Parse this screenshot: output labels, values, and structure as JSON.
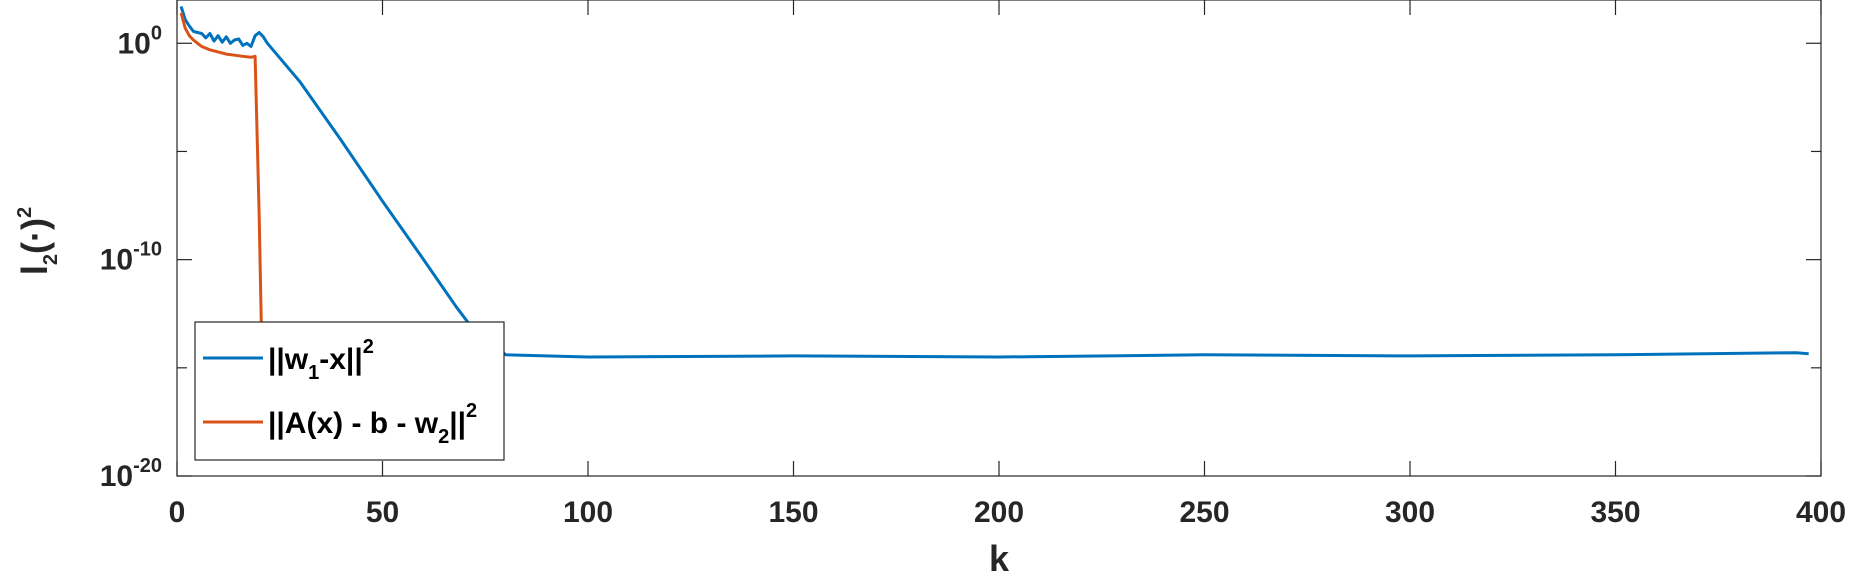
{
  "chart_data": {
    "type": "line",
    "xlabel": "k",
    "ylabel_parts": {
      "base": "l",
      "sub": "2",
      "mid": "(·)",
      "sup": "2"
    },
    "xlim": [
      0,
      400
    ],
    "ylim_log10": [
      -20,
      2
    ],
    "yscale": "log",
    "xticks": [
      "0",
      "50",
      "100",
      "150",
      "200",
      "250",
      "300",
      "350",
      "400"
    ],
    "xtick_values": [
      0,
      50,
      100,
      150,
      200,
      250,
      300,
      350,
      400
    ],
    "yticks": [
      {
        "exp": -20,
        "base": "10",
        "sup": "-20"
      },
      {
        "exp": -10,
        "base": "10",
        "sup": "-10"
      },
      {
        "exp": 0,
        "base": "10",
        "sup": "0"
      }
    ],
    "minor_ytick_exps": [
      -15,
      -5
    ],
    "grid": false,
    "legend_position": "lower-left",
    "series": [
      {
        "key": "w1",
        "legend": {
          "pre": "||w",
          "sub": "1",
          "post": "-x||",
          "sup": "2"
        },
        "color": "#0072BD",
        "points_log10": [
          [
            1,
            1.7
          ],
          [
            2,
            1.1
          ],
          [
            3,
            0.8
          ],
          [
            4,
            0.55
          ],
          [
            5,
            0.5
          ],
          [
            6,
            0.45
          ],
          [
            7,
            0.25
          ],
          [
            8,
            0.45
          ],
          [
            9,
            0.1
          ],
          [
            10,
            0.35
          ],
          [
            11,
            0.05
          ],
          [
            12,
            0.3
          ],
          [
            13,
            0.0
          ],
          [
            14,
            0.15
          ],
          [
            15,
            0.2
          ],
          [
            16,
            -0.1
          ],
          [
            17,
            0.0
          ],
          [
            18,
            -0.15
          ],
          [
            19,
            0.35
          ],
          [
            20,
            0.5
          ],
          [
            21,
            0.3
          ],
          [
            22,
            0.0
          ],
          [
            30,
            -1.8
          ],
          [
            40,
            -4.5
          ],
          [
            50,
            -7.3
          ],
          [
            60,
            -10.0
          ],
          [
            64,
            -11.1
          ],
          [
            68,
            -12.2
          ],
          [
            72,
            -13.2
          ],
          [
            80,
            -14.4
          ],
          [
            100,
            -14.5
          ],
          [
            150,
            -14.45
          ],
          [
            200,
            -14.5
          ],
          [
            250,
            -14.4
          ],
          [
            300,
            -14.45
          ],
          [
            350,
            -14.4
          ],
          [
            394,
            -14.3
          ],
          [
            397,
            -14.35
          ]
        ]
      },
      {
        "key": "residual",
        "legend": {
          "pre": "||A(x) - b - w",
          "sub": "2",
          "post": "||",
          "sup": "2"
        },
        "color": "#D95319",
        "points_log10": [
          [
            1,
            1.4
          ],
          [
            2,
            0.7
          ],
          [
            3,
            0.35
          ],
          [
            4,
            0.15
          ],
          [
            5,
            0.0
          ],
          [
            6,
            -0.15
          ],
          [
            8,
            -0.3
          ],
          [
            10,
            -0.4
          ],
          [
            12,
            -0.5
          ],
          [
            14,
            -0.55
          ],
          [
            16,
            -0.6
          ],
          [
            18,
            -0.65
          ],
          [
            19,
            -0.6
          ],
          [
            20,
            -8.0
          ],
          [
            20.5,
            -13.0
          ]
        ]
      }
    ]
  }
}
